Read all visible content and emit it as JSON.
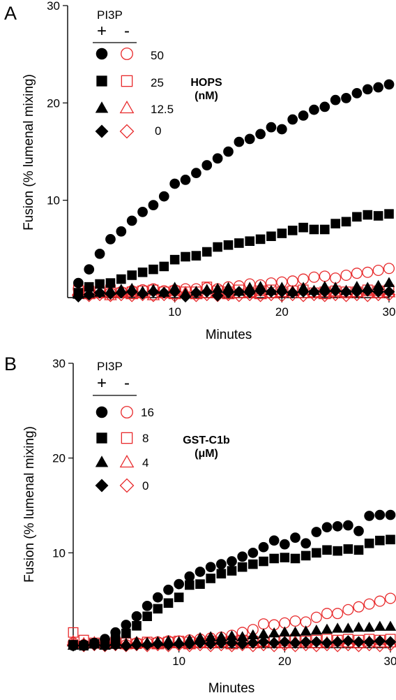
{
  "chart_data": [
    {
      "type": "scatter",
      "panel": "A",
      "xlabel": "Minutes",
      "ylabel": "Fusion (% lumenal mixing)",
      "xlim": [
        0,
        30
      ],
      "ylim": [
        0,
        30
      ],
      "xticks": [
        10,
        20,
        30
      ],
      "yticks": [
        10,
        20,
        30
      ],
      "grid": false,
      "legend": {
        "position": "top-left",
        "title": "PI3P",
        "plus": "+",
        "minus": "-",
        "values": [
          "50",
          "25",
          "12.5",
          "0"
        ],
        "annotation_line1": "HOPS",
        "annotation_line2": "(nM)"
      },
      "x": [
        1,
        2,
        3,
        4,
        5,
        6,
        7,
        8,
        9,
        10,
        11,
        12,
        13,
        14,
        15,
        16,
        17,
        18,
        19,
        20,
        21,
        22,
        23,
        24,
        25,
        26,
        27,
        28,
        29,
        30
      ],
      "series": [
        {
          "marker": "circle",
          "filled": true,
          "color": "#000000",
          "values": [
            1.5,
            2.9,
            4.5,
            6.0,
            6.8,
            7.9,
            8.8,
            9.5,
            10.4,
            11.7,
            12.1,
            12.8,
            13.6,
            14.3,
            15.0,
            16.0,
            16.3,
            16.8,
            17.5,
            17.3,
            18.3,
            18.7,
            19.3,
            19.6,
            20.3,
            20.5,
            21.0,
            21.4,
            21.6,
            21.9
          ]
        },
        {
          "marker": "square",
          "filled": true,
          "color": "#000000",
          "values": [
            0.5,
            1.1,
            1.4,
            1.5,
            1.9,
            2.3,
            2.6,
            2.9,
            3.2,
            3.9,
            4.2,
            4.3,
            4.7,
            5.2,
            5.4,
            5.6,
            5.8,
            6.0,
            6.3,
            6.6,
            6.9,
            7.2,
            7.0,
            7.0,
            7.6,
            7.8,
            8.3,
            8.5,
            8.4,
            8.6
          ]
        },
        {
          "marker": "triangle",
          "filled": true,
          "color": "#000000",
          "values": [
            0.3,
            0.4,
            0.5,
            0.7,
            0.8,
            0.9,
            0.6,
            0.8,
            0.5,
            1.0,
            0.4,
            0.6,
            0.8,
            0.9,
            1.0,
            0.6,
            1.0,
            1.1,
            0.7,
            1.0,
            0.6,
            1.0,
            0.7,
            1.1,
            1.0,
            0.7,
            1.1,
            1.0,
            1.2,
            1.5
          ]
        },
        {
          "marker": "diamond",
          "filled": true,
          "color": "#000000",
          "values": [
            0.1,
            0.3,
            0.5,
            0.4,
            0.5,
            0.6,
            0.4,
            0.6,
            0.5,
            0.6,
            0.1,
            0.5,
            0.6,
            0.2,
            0.5,
            0.6,
            0.5,
            0.7,
            0.6,
            0.6,
            0.5,
            0.6,
            0.6,
            0.6,
            0.7,
            0.6,
            0.6,
            0.7,
            0.6,
            0.6
          ]
        },
        {
          "marker": "circle",
          "filled": false,
          "color": "#e8292b",
          "values": [
            0.9,
            0.6,
            0.7,
            0.5,
            0.6,
            0.7,
            0.8,
            0.9,
            0.7,
            0.8,
            0.9,
            0.9,
            1.0,
            0.9,
            1.1,
            1.2,
            1.4,
            1.3,
            1.5,
            1.6,
            1.7,
            1.9,
            2.1,
            2.2,
            2.0,
            2.3,
            2.5,
            2.6,
            2.8,
            3.0
          ]
        },
        {
          "marker": "square",
          "filled": false,
          "color": "#e8292b",
          "values": [
            0.8,
            0.7,
            0.6,
            0.8,
            0.5,
            0.6,
            0.7,
            0.8,
            0.6,
            0.7,
            0.6,
            0.6,
            1.1,
            0.7,
            0.6,
            0.8,
            0.5,
            0.7,
            0.8,
            0.6,
            0.7,
            0.8,
            0.5,
            0.6,
            0.7,
            0.6,
            0.6,
            0.8,
            0.7,
            0.8
          ]
        },
        {
          "marker": "triangle",
          "filled": false,
          "color": "#e8292b",
          "values": [
            0.6,
            0.3,
            0.4,
            0.2,
            0.5,
            0.3,
            0.4,
            0.2,
            0.4,
            0.3,
            0.5,
            0.3,
            0.4,
            0.5,
            0.3,
            0.4,
            0.5,
            0.3,
            0.4,
            0.5,
            0.6,
            0.4,
            0.5,
            0.3,
            0.5,
            0.4,
            0.5,
            0.6,
            0.4,
            0.5
          ]
        },
        {
          "marker": "diamond",
          "filled": false,
          "color": "#e8292b",
          "values": [
            0.3,
            0.2,
            0.3,
            0.2,
            0.3,
            0.2,
            0.3,
            0.2,
            0.3,
            0.2,
            0.2,
            0.2,
            0.3,
            0.2,
            0.3,
            0.2,
            0.3,
            0.2,
            0.3,
            0.2,
            0.3,
            0.2,
            0.3,
            0.2,
            0.3,
            0.2,
            0.3,
            0.2,
            0.3,
            0.3
          ]
        }
      ]
    },
    {
      "type": "scatter",
      "panel": "B",
      "xlabel": "Minutes",
      "ylabel": "Fusion (% lumenal mixing)",
      "xlim": [
        0,
        30
      ],
      "ylim": [
        0,
        30
      ],
      "xticks": [
        10,
        20,
        30
      ],
      "yticks": [
        10,
        20,
        30
      ],
      "grid": false,
      "legend": {
        "position": "top-left",
        "title": "PI3P",
        "plus": "+",
        "minus": "-",
        "values": [
          "16",
          "8",
          "4",
          "0"
        ],
        "annotation_line1": "GST-C1b",
        "annotation_line2": "(μM)"
      },
      "x": [
        0,
        1,
        2,
        3,
        4,
        5,
        6,
        7,
        8,
        9,
        10,
        11,
        12,
        13,
        14,
        15,
        16,
        17,
        18,
        19,
        20,
        21,
        22,
        23,
        24,
        25,
        26,
        27,
        28,
        29,
        30
      ],
      "series": [
        {
          "marker": "circle",
          "filled": true,
          "color": "#000000",
          "values": [
            0.2,
            0.3,
            0.5,
            0.9,
            1.6,
            2.4,
            3.3,
            4.4,
            5.3,
            6.1,
            6.7,
            7.5,
            8.0,
            8.5,
            8.8,
            9.1,
            9.6,
            10.0,
            10.6,
            11.3,
            10.9,
            11.6,
            11.0,
            12.2,
            12.7,
            12.8,
            12.9,
            12.3,
            13.9,
            14.0,
            14.0
          ]
        },
        {
          "marker": "square",
          "filled": true,
          "color": "#000000",
          "values": [
            0.3,
            0.2,
            0.4,
            0.3,
            0.9,
            1.5,
            2.3,
            3.3,
            4.1,
            4.7,
            5.3,
            6.6,
            6.7,
            7.3,
            7.8,
            8.1,
            8.5,
            8.8,
            9.1,
            9.4,
            9.5,
            9.4,
            9.7,
            10.0,
            10.3,
            10.2,
            10.4,
            10.3,
            11.0,
            11.3,
            11.4
          ]
        },
        {
          "marker": "triangle",
          "filled": true,
          "color": "#000000",
          "values": [
            0.2,
            0.3,
            0.4,
            0.2,
            0.3,
            0.4,
            0.6,
            0.5,
            0.6,
            0.7,
            0.6,
            0.8,
            1.0,
            1.1,
            1.1,
            1.2,
            1.1,
            1.3,
            1.4,
            1.5,
            1.6,
            1.6,
            1.7,
            1.8,
            1.9,
            2.0,
            2.0,
            2.1,
            2.1,
            2.2,
            2.2
          ]
        },
        {
          "marker": "diamond",
          "filled": true,
          "color": "#000000",
          "values": [
            0.2,
            0.2,
            0.3,
            0.2,
            0.3,
            0.2,
            0.3,
            0.3,
            0.4,
            0.3,
            0.4,
            0.4,
            0.5,
            0.4,
            0.5,
            0.5,
            0.4,
            0.5,
            0.6,
            0.5,
            0.6,
            0.5,
            0.6,
            0.6,
            0.5,
            0.6,
            0.7,
            0.6,
            0.6,
            0.7,
            0.6
          ]
        },
        {
          "marker": "circle",
          "filled": false,
          "color": "#e8292b",
          "values": [
            0.5,
            0.3,
            0.4,
            0.3,
            0.4,
            0.3,
            0.5,
            0.5,
            0.6,
            0.7,
            0.7,
            0.8,
            0.9,
            1.0,
            1.1,
            1.3,
            1.6,
            1.9,
            2.5,
            2.4,
            2.6,
            2.8,
            2.7,
            3.2,
            3.6,
            3.6,
            4.0,
            4.3,
            4.6,
            4.9,
            5.2
          ]
        },
        {
          "marker": "square",
          "filled": false,
          "color": "#e8292b",
          "values": [
            1.6,
            0.8,
            0.5,
            0.4,
            0.6,
            0.5,
            0.4,
            0.6,
            0.5,
            0.6,
            0.7,
            0.6,
            0.5,
            0.7,
            0.6,
            0.7,
            0.8,
            0.7,
            0.6,
            0.8,
            0.7,
            0.9,
            0.7,
            0.8,
            0.9,
            0.8,
            0.9,
            0.8,
            0.9,
            0.8,
            0.9
          ]
        },
        {
          "marker": "triangle",
          "filled": false,
          "color": "#e8292b",
          "values": [
            0.6,
            0.4,
            0.5,
            0.3,
            0.4,
            0.3,
            0.5,
            0.4,
            0.3,
            0.5,
            0.4,
            0.3,
            0.5,
            0.4,
            0.5,
            0.3,
            0.5,
            0.4,
            0.6,
            0.5,
            0.4,
            0.6,
            0.5,
            0.4,
            0.5,
            0.6,
            0.5,
            0.4,
            0.6,
            0.5,
            0.5
          ]
        },
        {
          "marker": "diamond",
          "filled": false,
          "color": "#e8292b",
          "values": [
            0.3,
            0.2,
            0.3,
            0.2,
            0.3,
            0.2,
            0.3,
            0.2,
            0.3,
            0.2,
            0.3,
            0.2,
            0.3,
            0.2,
            0.3,
            0.2,
            0.3,
            0.2,
            0.3,
            0.2,
            0.3,
            0.2,
            0.3,
            0.2,
            0.3,
            0.2,
            0.3,
            0.2,
            0.3,
            0.2,
            0.3
          ]
        }
      ]
    }
  ]
}
